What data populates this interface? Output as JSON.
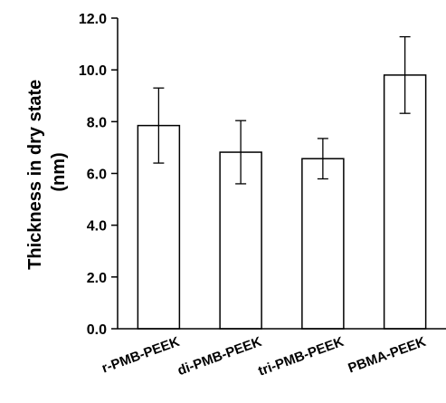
{
  "chart_data": {
    "type": "bar",
    "title": "",
    "xlabel": "",
    "ylabel_lines": [
      "Thickness in dry state",
      "(nm)"
    ],
    "ylim": [
      0,
      12
    ],
    "yticks": [
      "0.0",
      "2.0",
      "4.0",
      "6.0",
      "8.0",
      "10.0",
      "12.0"
    ],
    "grid": false,
    "legend": "none",
    "categories": [
      "r-PMB-PEEK",
      "di-PMB-PEEK",
      "tri-PMB-PEEK",
      "PBMA-PEEK"
    ],
    "series": [
      {
        "values": [
          7.85,
          6.82,
          6.57,
          9.8
        ],
        "error": [
          1.45,
          1.22,
          0.78,
          1.48
        ]
      }
    ],
    "colors": {
      "bar_fill": "#ffffff",
      "bar_stroke": "#000000",
      "axis": "#000000"
    }
  }
}
